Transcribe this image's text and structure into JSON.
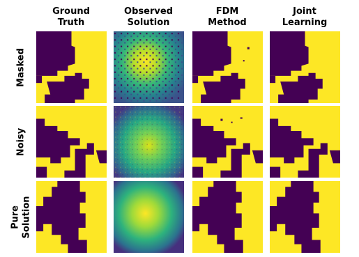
{
  "columns": [
    {
      "lines": [
        "Ground",
        "Truth"
      ]
    },
    {
      "lines": [
        "Observed",
        "Solution"
      ]
    },
    {
      "lines": [
        "FDM",
        "Method"
      ]
    },
    {
      "lines": [
        "Joint",
        "Learning"
      ]
    }
  ],
  "rows": [
    {
      "lines": [
        "Masked"
      ]
    },
    {
      "lines": [
        "Noisy"
      ]
    },
    {
      "lines": [
        "Pure",
        "Solution"
      ]
    }
  ]
}
